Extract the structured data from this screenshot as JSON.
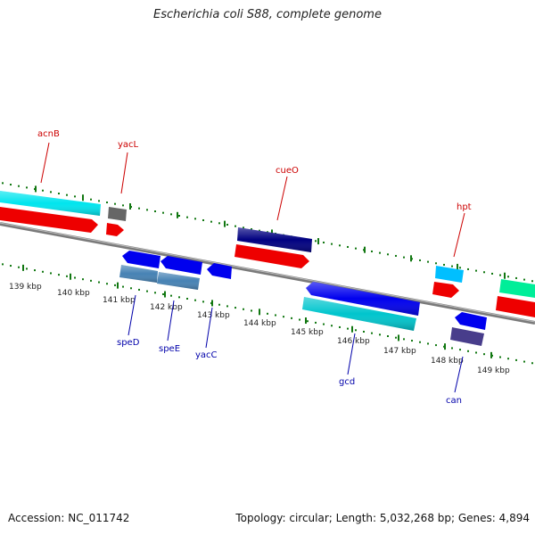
{
  "title": "Escherichia coli S88, complete genome",
  "accession": "Accession: NC_011742",
  "summary": "Topology: circular; Length: 5,032,268 bp; Genes: 4,894",
  "colors": {
    "backbone": "#808080",
    "ticks": "#117711",
    "ruler_text": "#222222",
    "upper_label": "#cc0000",
    "lower_label": "#0000aa"
  },
  "ruler": [
    {
      "label": "139 kbp"
    },
    {
      "label": "140 kbp"
    },
    {
      "label": "141 kbp"
    },
    {
      "label": "142 kbp"
    },
    {
      "label": "143 kbp"
    },
    {
      "label": "144 kbp"
    },
    {
      "label": "145 kbp"
    },
    {
      "label": "146 kbp"
    },
    {
      "label": "147 kbp"
    },
    {
      "label": "148 kbp"
    },
    {
      "label": "149 kbp"
    }
  ],
  "gene_labels": [
    {
      "text": "acnB",
      "strand": "upper"
    },
    {
      "text": "yacL",
      "strand": "upper"
    },
    {
      "text": "cueO",
      "strand": "upper"
    },
    {
      "text": "hpt",
      "strand": "upper"
    },
    {
      "text": "speD",
      "strand": "lower"
    },
    {
      "text": "speE",
      "strand": "lower"
    },
    {
      "text": "yacC",
      "strand": "lower"
    },
    {
      "text": "gcd",
      "strand": "lower"
    },
    {
      "text": "can",
      "strand": "lower"
    }
  ],
  "features": [
    {
      "color": "#00e5ee"
    },
    {
      "color": "#ee0000"
    },
    {
      "color": "#666666"
    },
    {
      "color": "#ee0000"
    },
    {
      "color": "#000080"
    },
    {
      "color": "#ee0000"
    },
    {
      "color": "#00bfff"
    },
    {
      "color": "#ee0000"
    },
    {
      "color": "#00ee99"
    },
    {
      "color": "#ee0000"
    },
    {
      "color": "#0000ee"
    },
    {
      "color": "#0000ee"
    },
    {
      "color": "#0000ee"
    },
    {
      "color": "#4682b4"
    },
    {
      "color": "#4682b4"
    },
    {
      "color": "#0000ee"
    },
    {
      "color": "#00c5cd"
    },
    {
      "color": "#0000ee"
    },
    {
      "color": "#483d8b"
    }
  ]
}
